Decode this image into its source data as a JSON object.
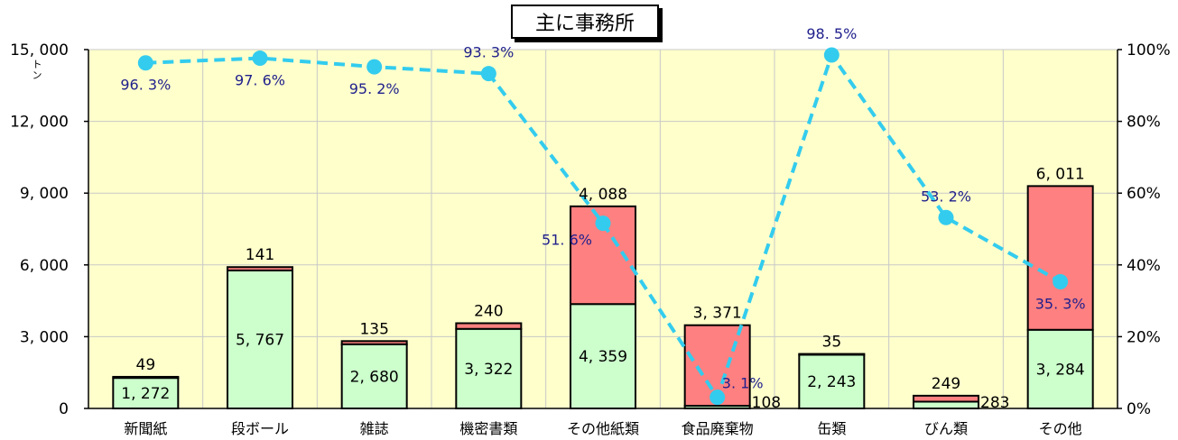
{
  "chart_data": {
    "type": "bar",
    "title": "主に事務所",
    "y_unit": "トン",
    "categories": [
      "新聞紙",
      "段ボール",
      "雑誌",
      "機密書類",
      "その他紙類",
      "食品廃棄物",
      "缶類",
      "びん類",
      "その他"
    ],
    "series": [
      {
        "values": [
          1272,
          5767,
          2680,
          3322,
          4359,
          108,
          2243,
          283,
          3284
        ],
        "labels": [
          "1, 272",
          "5, 767",
          "2, 680",
          "3, 322",
          "4, 359",
          "108",
          "2, 243",
          "283",
          "3, 284"
        ],
        "color": "#ccffcc"
      },
      {
        "values": [
          49,
          141,
          135,
          240,
          4088,
          3371,
          35,
          249,
          6011
        ],
        "labels": [
          "49",
          "141",
          "135",
          "240",
          "4, 088",
          "3, 371",
          "35",
          "249",
          "6, 011"
        ],
        "color": "#ff8080"
      },
      {
        "type": "line",
        "values": [
          96.3,
          97.6,
          95.2,
          93.3,
          51.6,
          3.1,
          98.5,
          53.2,
          35.3
        ],
        "labels": [
          "96. 3%",
          "97. 6%",
          "95. 2%",
          "93. 3%",
          "51. 6%",
          "3. 1%",
          "98. 5%",
          "53. 2%",
          "35. 3%"
        ],
        "color": "#33ccee",
        "axis": "right"
      }
    ],
    "y_left": {
      "min": 0,
      "max": 15000,
      "ticks": [
        "0",
        "3, 000",
        "6, 000",
        "9, 000",
        "12, 000",
        "15, 000"
      ]
    },
    "y_right": {
      "min": 0,
      "max": 100,
      "ticks": [
        "0%",
        "20%",
        "40%",
        "60%",
        "80%",
        "100%"
      ]
    },
    "grid": true,
    "plot_background": "#ffffcc"
  }
}
